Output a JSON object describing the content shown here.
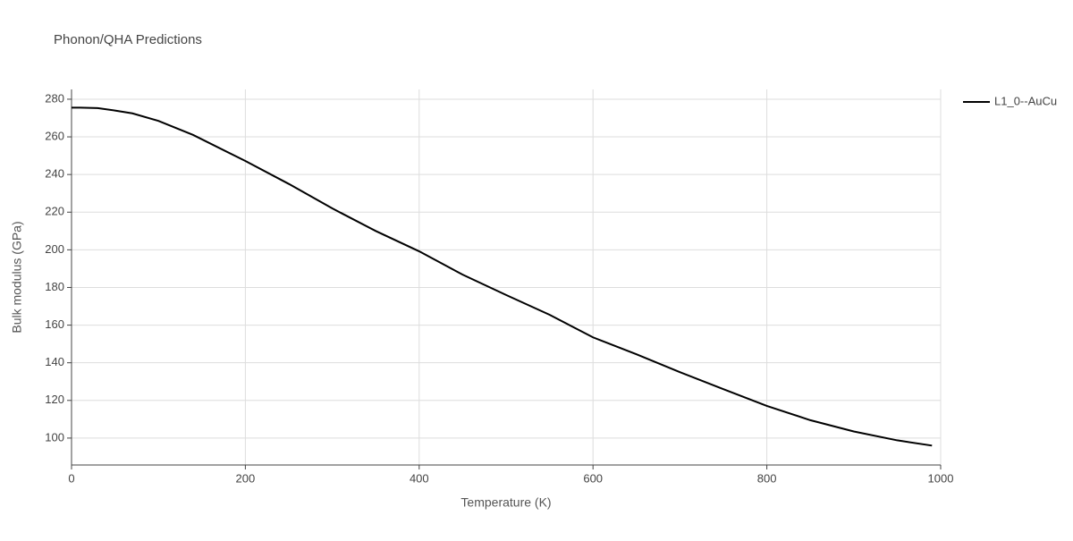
{
  "chart_data": {
    "type": "line",
    "title": "Phonon/QHA Predictions",
    "x_label": "Temperature (K)",
    "y_label": "Bulk modulus (GPa)",
    "xlim": [
      0,
      1000
    ],
    "ylim": [
      85.7,
      285.2
    ],
    "xticks": [
      0,
      200,
      400,
      600,
      800,
      1000
    ],
    "yticks": [
      100,
      120,
      140,
      160,
      180,
      200,
      220,
      240,
      260,
      280
    ],
    "grid": true,
    "legend": "top-right",
    "x": [
      0,
      10,
      30,
      50,
      70,
      100,
      140,
      200,
      250,
      300,
      350,
      400,
      450,
      500,
      550,
      600,
      650,
      700,
      750,
      800,
      850,
      900,
      950,
      990
    ],
    "series": [
      {
        "name": "L1_0--AuCu",
        "color": "#000000",
        "values": [
          275.5,
          275.5,
          275.3,
          274,
          272.5,
          268.5,
          261,
          247.2,
          235,
          222,
          210,
          199.2,
          186.8,
          176,
          165.5,
          153.5,
          144.5,
          135,
          126,
          117.1,
          109.5,
          103.5,
          98.8,
          96
        ]
      }
    ]
  }
}
